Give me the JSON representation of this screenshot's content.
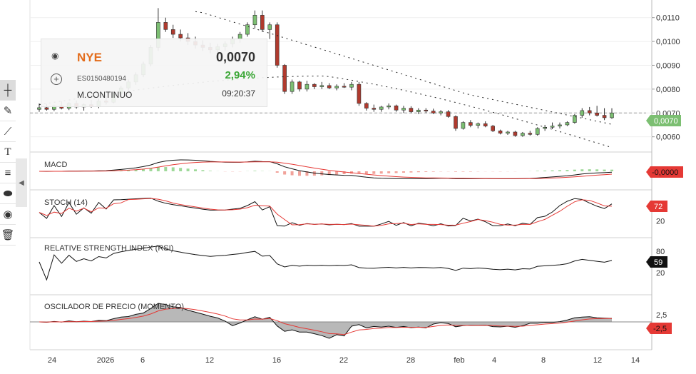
{
  "instrument": {
    "symbol": "NYE",
    "isin": "ES0150480194",
    "market": "M.CONTINUO",
    "price": "0,0070",
    "change": "2,94%",
    "time": "09:20:37"
  },
  "colors": {
    "up": "#7cbf72",
    "down": "#b03a2e",
    "signal": "#e53935",
    "last_price_badge": "#7cbf72"
  },
  "icons": {
    "visibility": "eye-slash-icon",
    "add": "plus-circle-icon",
    "tools": [
      "crosshair-icon",
      "pencil-icon",
      "trendline-icon",
      "text-icon",
      "parallel-lines-icon",
      "eraser-icon",
      "eye-slash-icon",
      "trash-icon"
    ],
    "collapse": "chevron-left-icon"
  },
  "panels": {
    "macd": "MACD",
    "stoch": "STOCH (14)",
    "rsi": "RELATIVE STRENGTH INDEX (RSI)",
    "momentum": "OSCILADOR DE PRECIO (MOMENTO)"
  },
  "badges": {
    "macd": "-0,0000",
    "stoch": "72",
    "rsi": "59",
    "momentum": "-2,5",
    "price": "0,0070"
  },
  "chart_data": {
    "type": "candlestick",
    "x_ticks": [
      "24",
      "2026",
      "6",
      "12",
      "16",
      "22",
      "28",
      "feb",
      "4",
      "8",
      "12",
      "14"
    ],
    "price_axis": {
      "ticks": [
        "0,0110",
        "0,0100",
        "0,0090",
        "0,0080",
        "0,0070",
        "0,0060"
      ],
      "ylim": [
        0.0056,
        0.0115
      ]
    },
    "stoch_axis": [
      "20"
    ],
    "rsi_axis": [
      "80",
      "20"
    ],
    "momentum_axis": [
      "2,5",
      "-2,5"
    ],
    "ohlc": [
      [
        0.00715,
        0.0074,
        0.00705,
        0.00722
      ],
      [
        0.00722,
        0.00738,
        0.0071,
        0.00715
      ],
      [
        0.00715,
        0.00735,
        0.00708,
        0.0073
      ],
      [
        0.0073,
        0.00748,
        0.00715,
        0.0072
      ],
      [
        0.0072,
        0.00745,
        0.00712,
        0.0074
      ],
      [
        0.0074,
        0.00752,
        0.00718,
        0.00725
      ],
      [
        0.00725,
        0.0074,
        0.0071,
        0.00735
      ],
      [
        0.00735,
        0.00755,
        0.00722,
        0.00728
      ],
      [
        0.00728,
        0.0076,
        0.0072,
        0.0075
      ],
      [
        0.0075,
        0.00772,
        0.00735,
        0.00745
      ],
      [
        0.00745,
        0.0079,
        0.0074,
        0.00782
      ],
      [
        0.00782,
        0.00815,
        0.0077,
        0.00805
      ],
      [
        0.00805,
        0.0084,
        0.00795,
        0.0083
      ],
      [
        0.0083,
        0.0087,
        0.00818,
        0.0086
      ],
      [
        0.0086,
        0.00915,
        0.0085,
        0.00905
      ],
      [
        0.00905,
        0.00985,
        0.00895,
        0.00975
      ],
      [
        0.00975,
        0.0114,
        0.0096,
        0.0108
      ],
      [
        0.0108,
        0.011,
        0.0104,
        0.0105
      ],
      [
        0.0105,
        0.0107,
        0.01015,
        0.0103
      ],
      [
        0.0103,
        0.0105,
        0.01,
        0.01015
      ],
      [
        0.01015,
        0.01035,
        0.00985,
        0.01
      ],
      [
        0.01,
        0.0102,
        0.0097,
        0.00985
      ],
      [
        0.00985,
        0.01005,
        0.0096,
        0.00975
      ],
      [
        0.00975,
        0.00995,
        0.0095,
        0.00965
      ],
      [
        0.00965,
        0.0099,
        0.00945,
        0.00978
      ],
      [
        0.00978,
        0.01,
        0.0096,
        0.0099
      ],
      [
        0.0099,
        0.0102,
        0.00975,
        0.0101
      ],
      [
        0.0101,
        0.0104,
        0.00995,
        0.0103
      ],
      [
        0.0103,
        0.0108,
        0.0102,
        0.0107
      ],
      [
        0.0107,
        0.0113,
        0.01055,
        0.0111
      ],
      [
        0.0111,
        0.0113,
        0.0104,
        0.0105
      ],
      [
        0.0105,
        0.0108,
        0.0101,
        0.0107
      ],
      [
        0.0107,
        0.0108,
        0.0089,
        0.009
      ],
      [
        0.009,
        0.00905,
        0.0078,
        0.0079
      ],
      [
        0.0079,
        0.0084,
        0.0078,
        0.0083
      ],
      [
        0.0083,
        0.00835,
        0.0079,
        0.008
      ],
      [
        0.008,
        0.00835,
        0.0079,
        0.0082
      ],
      [
        0.0082,
        0.00825,
        0.008,
        0.0081
      ],
      [
        0.0081,
        0.0083,
        0.008,
        0.00815
      ],
      [
        0.00815,
        0.00825,
        0.008,
        0.00805
      ],
      [
        0.00805,
        0.0082,
        0.00795,
        0.00812
      ],
      [
        0.00812,
        0.00825,
        0.00805,
        0.00808
      ],
      [
        0.00808,
        0.0083,
        0.00795,
        0.0082
      ],
      [
        0.0082,
        0.0083,
        0.0073,
        0.0074
      ],
      [
        0.0074,
        0.00745,
        0.0071,
        0.0072
      ],
      [
        0.0072,
        0.00735,
        0.00705,
        0.00715
      ],
      [
        0.00715,
        0.0073,
        0.00705,
        0.00725
      ],
      [
        0.00725,
        0.0074,
        0.00715,
        0.0073
      ],
      [
        0.0073,
        0.00735,
        0.00705,
        0.00712
      ],
      [
        0.00712,
        0.0073,
        0.007,
        0.0072
      ],
      [
        0.0072,
        0.00728,
        0.007,
        0.00705
      ],
      [
        0.00705,
        0.0072,
        0.00695,
        0.00712
      ],
      [
        0.00712,
        0.0072,
        0.007,
        0.00708
      ],
      [
        0.00708,
        0.00718,
        0.00695,
        0.007
      ],
      [
        0.007,
        0.00712,
        0.0069,
        0.00705
      ],
      [
        0.00705,
        0.00712,
        0.0068,
        0.00685
      ],
      [
        0.00685,
        0.0069,
        0.00625,
        0.00635
      ],
      [
        0.00635,
        0.00665,
        0.0063,
        0.0066
      ],
      [
        0.0066,
        0.0067,
        0.0064,
        0.00648
      ],
      [
        0.00648,
        0.0066,
        0.00635,
        0.00655
      ],
      [
        0.00655,
        0.00665,
        0.0064,
        0.00645
      ],
      [
        0.00645,
        0.0065,
        0.0062,
        0.00625
      ],
      [
        0.00625,
        0.0063,
        0.0061,
        0.00615
      ],
      [
        0.00615,
        0.00625,
        0.00608,
        0.0062
      ],
      [
        0.0062,
        0.00625,
        0.006,
        0.00605
      ],
      [
        0.00605,
        0.0062,
        0.006,
        0.00615
      ],
      [
        0.00615,
        0.00625,
        0.00605,
        0.0061
      ],
      [
        0.0061,
        0.0064,
        0.00605,
        0.00635
      ],
      [
        0.00635,
        0.0065,
        0.00625,
        0.0064
      ],
      [
        0.0064,
        0.0066,
        0.00632,
        0.00645
      ],
      [
        0.00645,
        0.0066,
        0.00635,
        0.0065
      ],
      [
        0.0065,
        0.00665,
        0.00645,
        0.0066
      ],
      [
        0.0066,
        0.00695,
        0.00655,
        0.0069
      ],
      [
        0.0069,
        0.0072,
        0.0068,
        0.0071
      ],
      [
        0.0071,
        0.00725,
        0.0069,
        0.007
      ],
      [
        0.007,
        0.0073,
        0.00685,
        0.0069
      ],
      [
        0.0069,
        0.0072,
        0.0067,
        0.0068
      ],
      [
        0.0068,
        0.0072,
        0.00675,
        0.007
      ]
    ]
  }
}
